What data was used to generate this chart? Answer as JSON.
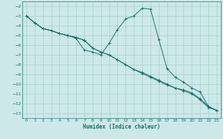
{
  "xlabel": "Humidex (Indice chaleur)",
  "background_color": "#cce8e8",
  "grid_color": "#aacccc",
  "line_color": "#1a6b6b",
  "xlim": [
    -0.5,
    23.5
  ],
  "ylim": [
    -13.5,
    -1.5
  ],
  "xticks": [
    0,
    1,
    2,
    3,
    4,
    5,
    6,
    7,
    8,
    9,
    10,
    11,
    12,
    13,
    14,
    15,
    16,
    17,
    18,
    19,
    20,
    21,
    22,
    23
  ],
  "yticks": [
    -2,
    -3,
    -4,
    -5,
    -6,
    -7,
    -8,
    -9,
    -10,
    -11,
    -12,
    -13
  ],
  "line1_x": [
    0,
    1,
    2,
    3,
    4,
    5,
    6,
    7,
    8,
    9,
    10,
    11,
    12,
    13,
    14,
    15,
    16,
    17,
    18,
    19,
    20,
    21,
    22,
    23
  ],
  "line1_y": [
    -3.0,
    -3.7,
    -4.3,
    -4.5,
    -4.8,
    -5.0,
    -5.3,
    -6.5,
    -6.7,
    -7.0,
    -5.8,
    -4.4,
    -3.3,
    -3.0,
    -2.2,
    -2.3,
    -5.4,
    -8.4,
    -9.3,
    -9.8,
    -10.4,
    -10.8,
    -12.3,
    -12.7
  ],
  "line2_x": [
    0,
    1,
    2,
    3,
    4,
    5,
    6,
    7,
    8,
    9,
    10,
    11,
    12,
    13,
    14,
    15,
    16,
    17,
    18,
    19,
    20,
    21,
    22,
    23
  ],
  "line2_y": [
    -3.0,
    -3.7,
    -4.3,
    -4.5,
    -4.8,
    -5.0,
    -5.2,
    -5.5,
    -6.3,
    -6.7,
    -7.0,
    -7.5,
    -8.0,
    -8.5,
    -8.8,
    -9.2,
    -9.6,
    -10.0,
    -10.4,
    -10.6,
    -10.9,
    -11.5,
    -12.3,
    -12.7
  ],
  "line3_x": [
    0,
    1,
    2,
    3,
    4,
    5,
    6,
    7,
    8,
    9,
    10,
    11,
    12,
    13,
    14,
    15,
    16,
    17,
    18,
    19,
    20,
    21,
    22,
    23
  ],
  "line3_y": [
    -3.0,
    -3.7,
    -4.3,
    -4.5,
    -4.8,
    -5.0,
    -5.2,
    -5.5,
    -6.3,
    -6.7,
    -7.0,
    -7.5,
    -8.0,
    -8.5,
    -8.9,
    -9.3,
    -9.7,
    -10.1,
    -10.4,
    -10.7,
    -11.0,
    -11.6,
    -12.4,
    -12.7
  ]
}
